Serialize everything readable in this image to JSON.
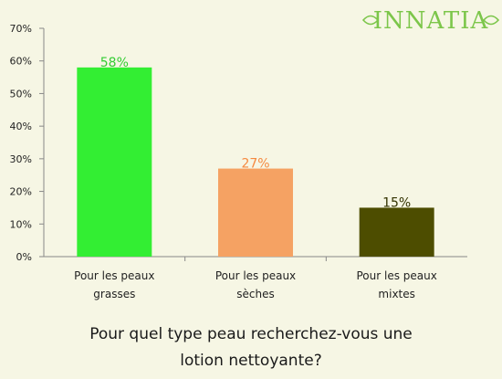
{
  "brand": {
    "name": "INNATIA",
    "color": "#7cc64a"
  },
  "question": {
    "line1": "Pour quel type peau recherchez-vous une",
    "line2": "lotion nettoyante?"
  },
  "chart_data": {
    "type": "bar",
    "categories": [
      [
        "Pour les peaux",
        "grasses"
      ],
      [
        "Pour les peaux",
        "sèches"
      ],
      [
        "Pour les peaux",
        "mixtes"
      ]
    ],
    "values": [
      58,
      27,
      15
    ],
    "data_labels": [
      "58%",
      "27%",
      "15%"
    ],
    "bar_colors": [
      "#33ee33",
      "#f5a263",
      "#4d4d00"
    ],
    "label_colors": [
      "#33cc33",
      "#f58a40",
      "#333300"
    ],
    "ylim": [
      0,
      70
    ],
    "yticks": [
      0,
      10,
      20,
      30,
      40,
      50,
      60,
      70
    ],
    "ytick_labels": [
      "0%",
      "10%",
      "20%",
      "30%",
      "40%",
      "50%",
      "60%",
      "70%"
    ],
    "grid": false,
    "title": "",
    "xlabel": "",
    "ylabel": ""
  }
}
